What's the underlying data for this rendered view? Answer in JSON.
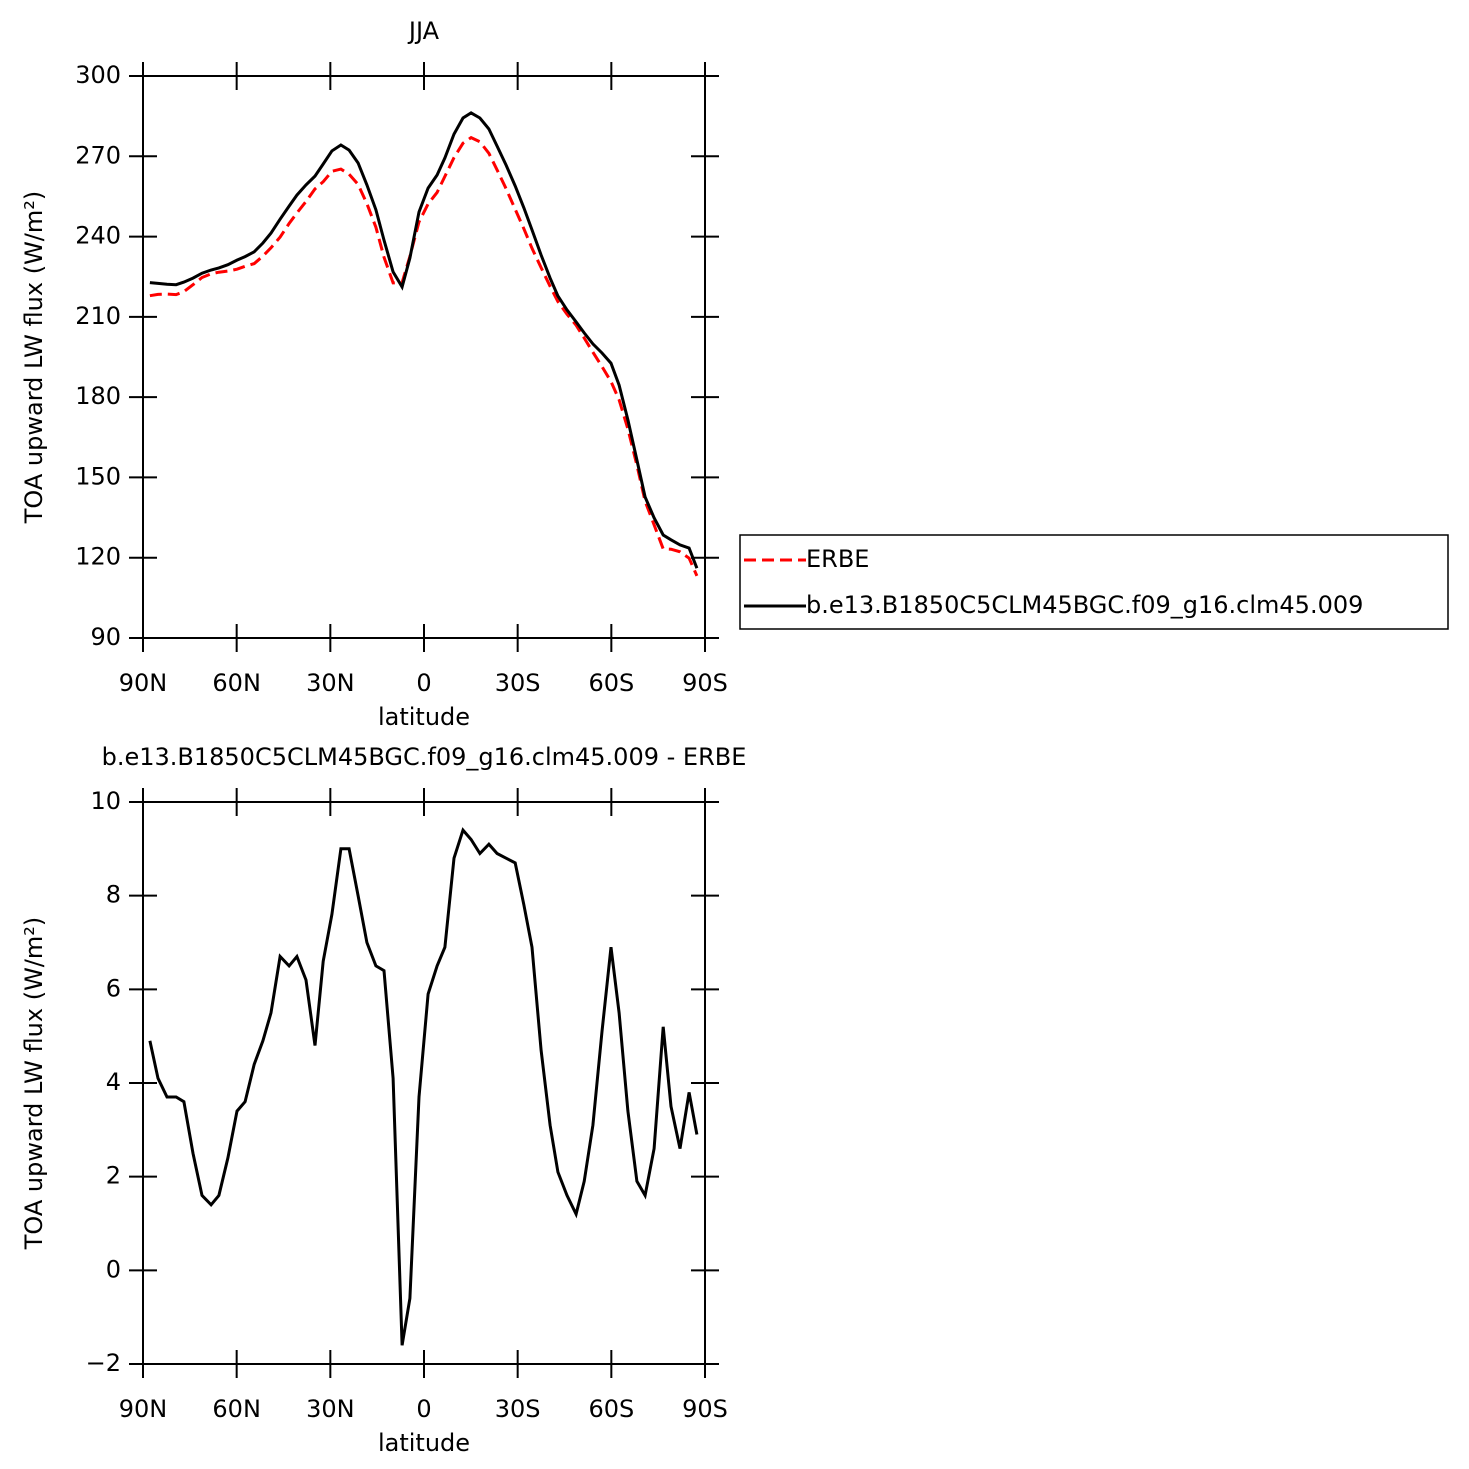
{
  "chart_data": [
    {
      "type": "line",
      "title": "JJA",
      "xlabel": "latitude",
      "ylabel": "TOA upward LW flux (W/m²)",
      "xlim": [
        90,
        -90
      ],
      "xticks": [
        {
          "value": 90,
          "label": "90N"
        },
        {
          "value": 60,
          "label": "60N"
        },
        {
          "value": 30,
          "label": "30N"
        },
        0,
        {
          "value": -30,
          "label": "30S"
        },
        {
          "value": -60,
          "label": "60S"
        },
        {
          "value": -90,
          "label": "90S"
        }
      ],
      "ylim": [
        90,
        300
      ],
      "yticks": [
        90,
        120,
        150,
        180,
        210,
        240,
        270,
        300
      ],
      "legend": "right",
      "x": [
        87.8,
        85.2,
        82.3,
        79.4,
        76.9,
        74.0,
        71.1,
        68.2,
        65.7,
        62.8,
        59.9,
        57.3,
        54.4,
        51.6,
        49.0,
        46.1,
        43.2,
        40.7,
        37.8,
        34.9,
        32.3,
        29.5,
        26.6,
        24.0,
        21.1,
        18.3,
        15.4,
        12.8,
        9.9,
        7.0,
        4.5,
        1.6,
        -1.3,
        -4.2,
        -6.7,
        -9.6,
        -12.5,
        -15.1,
        -17.9,
        -20.8,
        -23.4,
        -26.3,
        -29.2,
        -32.0,
        -34.6,
        -37.5,
        -40.4,
        -42.9,
        -45.8,
        -48.7,
        -51.3,
        -54.1,
        -57.0,
        -59.9,
        -62.5,
        -65.3,
        -68.2,
        -70.8,
        -73.7,
        -76.6,
        -79.1,
        -82.0,
        -84.9,
        -87.4
      ],
      "series": [
        {
          "name": "ERBE",
          "color": "#ff0000",
          "style": "dashed",
          "values": [
            217.9,
            218.4,
            218.5,
            218.3,
            219.4,
            222.0,
            224.7,
            226.1,
            226.7,
            227.1,
            227.8,
            228.9,
            229.9,
            232.7,
            235.8,
            239.8,
            244.9,
            248.8,
            253.1,
            257.8,
            260.5,
            264.4,
            265.2,
            263.3,
            259.5,
            252.3,
            243.5,
            232.3,
            222.7,
            222.8,
            232.6,
            245.5,
            252.2,
            256.5,
            262.5,
            269.5,
            274.9,
            277.0,
            275.4,
            271.1,
            264.9,
            257.9,
            250.2,
            242.9,
            235.6,
            228.4,
            221.4,
            215.7,
            211.0,
            206.9,
            202.1,
            196.8,
            191.4,
            185.8,
            179.0,
            168.1,
            154.6,
            141.1,
            132.3,
            123.3,
            123.2,
            122.2,
            119.8,
            113.2
          ]
        },
        {
          "name": "b.e13.B1850C5CLM45BGC.f09_g16.clm45.009",
          "color": "#000000",
          "style": "solid",
          "values": [
            222.8,
            222.5,
            222.2,
            222.0,
            223.0,
            224.5,
            226.3,
            227.5,
            228.3,
            229.5,
            231.2,
            232.5,
            234.3,
            237.6,
            241.3,
            246.5,
            251.4,
            255.5,
            259.3,
            262.6,
            267.1,
            272.0,
            274.2,
            272.3,
            267.5,
            259.3,
            250.0,
            238.7,
            226.8,
            221.2,
            232.0,
            249.2,
            258.1,
            263.0,
            269.4,
            278.3,
            284.3,
            286.2,
            284.3,
            280.2,
            273.8,
            266.7,
            258.9,
            250.7,
            242.5,
            233.1,
            224.5,
            217.8,
            212.6,
            208.1,
            204.0,
            199.9,
            196.5,
            192.7,
            184.5,
            171.5,
            156.5,
            142.7,
            134.9,
            128.5,
            126.7,
            124.8,
            123.6,
            116.1
          ]
        }
      ]
    },
    {
      "type": "line",
      "title": "b.e13.B1850C5CLM45BGC.f09_g16.clm45.009 - ERBE",
      "xlabel": "latitude",
      "ylabel": "TOA upward LW flux (W/m²)",
      "xlim": [
        90,
        -90
      ],
      "xticks": [
        {
          "value": 90,
          "label": "90N"
        },
        {
          "value": 60,
          "label": "60N"
        },
        {
          "value": 30,
          "label": "30N"
        },
        0,
        {
          "value": -30,
          "label": "30S"
        },
        {
          "value": -60,
          "label": "60S"
        },
        {
          "value": -90,
          "label": "90S"
        }
      ],
      "ylim": [
        -2,
        10
      ],
      "yticks": [
        {
          "value": -2,
          "label": "−2"
        },
        0,
        2,
        4,
        6,
        8,
        10
      ],
      "x": [
        87.8,
        85.2,
        82.3,
        79.4,
        76.9,
        74.0,
        71.1,
        68.2,
        65.7,
        62.8,
        59.9,
        57.3,
        54.4,
        51.6,
        49.0,
        46.1,
        43.2,
        40.7,
        37.8,
        34.9,
        32.3,
        29.5,
        26.6,
        24.0,
        21.1,
        18.3,
        15.4,
        12.8,
        9.9,
        7.0,
        4.5,
        1.6,
        -1.3,
        -4.2,
        -6.7,
        -9.6,
        -12.5,
        -15.1,
        -17.9,
        -20.8,
        -23.4,
        -26.3,
        -29.2,
        -32.0,
        -34.6,
        -37.5,
        -40.4,
        -42.9,
        -45.8,
        -48.7,
        -51.3,
        -54.1,
        -57.0,
        -59.9,
        -62.5,
        -65.3,
        -68.2,
        -70.8,
        -73.7,
        -76.6,
        -79.1,
        -82.0,
        -84.9,
        -87.4
      ],
      "series": [
        {
          "color": "#000000",
          "style": "solid",
          "values": [
            4.9,
            4.1,
            3.7,
            3.7,
            3.6,
            2.5,
            1.6,
            1.4,
            1.6,
            2.4,
            3.4,
            3.6,
            4.4,
            4.9,
            5.5,
            6.7,
            6.5,
            6.7,
            6.2,
            4.8,
            6.6,
            7.6,
            9.0,
            9.0,
            8.0,
            7.0,
            6.5,
            6.4,
            4.1,
            -1.6,
            -0.6,
            3.7,
            5.9,
            6.5,
            6.9,
            8.8,
            9.4,
            9.2,
            8.9,
            9.1,
            8.9,
            8.8,
            8.7,
            7.8,
            6.9,
            4.7,
            3.1,
            2.1,
            1.6,
            1.2,
            1.9,
            3.1,
            5.1,
            6.9,
            5.5,
            3.4,
            1.9,
            1.6,
            2.6,
            5.2,
            3.5,
            2.6,
            3.8,
            2.9
          ]
        }
      ]
    }
  ]
}
